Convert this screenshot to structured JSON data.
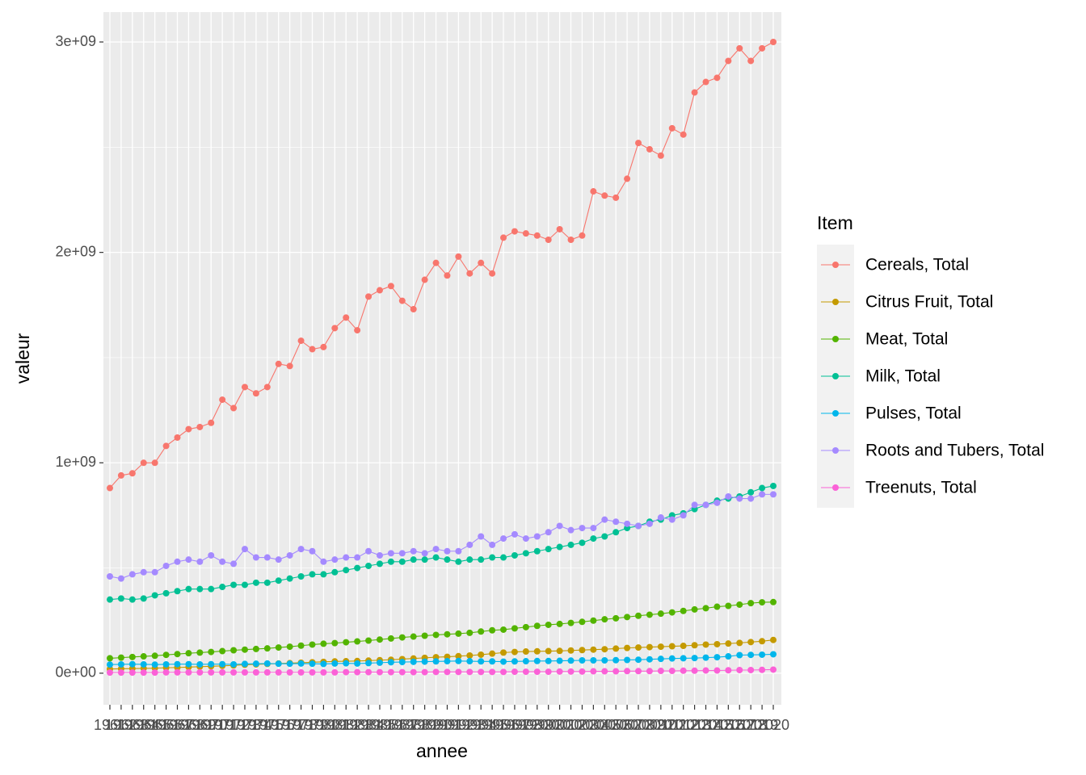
{
  "chart_data": {
    "type": "line",
    "x_label": "annee",
    "y_label": "valeur",
    "legend_title": "Item",
    "categories": [
      "1961",
      "1962",
      "1963",
      "1964",
      "1965",
      "1966",
      "1967",
      "1968",
      "1969",
      "1970",
      "1971",
      "1972",
      "1973",
      "1974",
      "1975",
      "1976",
      "1977",
      "1978",
      "1979",
      "1980",
      "1981",
      "1982",
      "1983",
      "1984",
      "1985",
      "1986",
      "1987",
      "1988",
      "1989",
      "1990",
      "1991",
      "1992",
      "1993",
      "1994",
      "1995",
      "1996",
      "1997",
      "1998",
      "1999",
      "2000",
      "2001",
      "2002",
      "2003",
      "2004",
      "2005",
      "2006",
      "2007",
      "2008",
      "2009",
      "2010",
      "2011",
      "2012",
      "2013",
      "2014",
      "2015",
      "2016",
      "2017",
      "2018",
      "2019",
      "2020"
    ],
    "ylim": [
      -150000000,
      3142000000
    ],
    "yticks": [
      {
        "value": 0,
        "label": "0e+00"
      },
      {
        "value": 1000000000,
        "label": "1e+09"
      },
      {
        "value": 2000000000,
        "label": "2e+09"
      },
      {
        "value": 3000000000,
        "label": "3e+09"
      }
    ],
    "grid": true,
    "legend": "right",
    "series": [
      {
        "name": "Cereals, Total",
        "color": "#F8766D",
        "values": [
          880000000.0,
          940000000.0,
          950000000.0,
          1000000000.0,
          1000000000.0,
          1080000000.0,
          1120000000.0,
          1160000000.0,
          1170000000.0,
          1190000000.0,
          1300000000.0,
          1260000000.0,
          1360000000.0,
          1330000000.0,
          1360000000.0,
          1470000000.0,
          1460000000.0,
          1580000000.0,
          1540000000.0,
          1550000000.0,
          1640000000.0,
          1690000000.0,
          1630000000.0,
          1790000000.0,
          1820000000.0,
          1840000000.0,
          1770000000.0,
          1730000000.0,
          1870000000.0,
          1950000000.0,
          1890000000.0,
          1980000000.0,
          1900000000.0,
          1950000000.0,
          1900000000.0,
          2070000000.0,
          2100000000.0,
          2090000000.0,
          2080000000.0,
          2060000000.0,
          2110000000.0,
          2060000000.0,
          2080000000.0,
          2290000000.0,
          2270000000.0,
          2260000000.0,
          2350000000.0,
          2520000000.0,
          2490000000.0,
          2460000000.0,
          2590000000.0,
          2560000000.0,
          2760000000.0,
          2810000000.0,
          2830000000.0,
          2910000000.0,
          2970000000.0,
          2910000000.0,
          2970000000.0,
          3000000000.0
        ]
      },
      {
        "name": "Citrus Fruit, Total",
        "color": "#C49A00",
        "values": [
          20000000.0,
          21000000.0,
          22000000.0,
          23000000.0,
          24000000.0,
          26000000.0,
          27000000.0,
          29000000.0,
          31000000.0,
          33000000.0,
          35000000.0,
          37000000.0,
          40000000.0,
          42000000.0,
          44000000.0,
          46000000.0,
          48000000.0,
          50000000.0,
          52000000.0,
          54000000.0,
          56000000.0,
          57000000.0,
          58000000.0,
          60000000.0,
          62000000.0,
          64000000.0,
          67000000.0,
          70000000.0,
          73000000.0,
          76000000.0,
          78000000.0,
          81000000.0,
          84000000.0,
          88000000.0,
          93000000.0,
          98000000.0,
          101000000.0,
          103000000.0,
          104000000.0,
          105000000.0,
          106000000.0,
          108000000.0,
          110000000.0,
          112000000.0,
          114000000.0,
          117000000.0,
          120000000.0,
          122000000.0,
          124000000.0,
          126000000.0,
          128000000.0,
          130000000.0,
          133000000.0,
          136000000.0,
          138000000.0,
          141000000.0,
          144000000.0,
          148000000.0,
          152000000.0,
          158000000.0
        ]
      },
      {
        "name": "Meat, Total",
        "color": "#53B400",
        "values": [
          71000000.0,
          74000000.0,
          77000000.0,
          80000000.0,
          83000000.0,
          87000000.0,
          91000000.0,
          95000000.0,
          98000000.0,
          101000000.0,
          105000000.0,
          109000000.0,
          112000000.0,
          115000000.0,
          118000000.0,
          122000000.0,
          126000000.0,
          131000000.0,
          136000000.0,
          140000000.0,
          143000000.0,
          147000000.0,
          151000000.0,
          155000000.0,
          160000000.0,
          165000000.0,
          170000000.0,
          174000000.0,
          178000000.0,
          182000000.0,
          185000000.0,
          188000000.0,
          192000000.0,
          198000000.0,
          204000000.0,
          207000000.0,
          213000000.0,
          219000000.0,
          225000000.0,
          230000000.0,
          234000000.0,
          239000000.0,
          244000000.0,
          250000000.0,
          256000000.0,
          261000000.0,
          267000000.0,
          273000000.0,
          278000000.0,
          283000000.0,
          289000000.0,
          296000000.0,
          303000000.0,
          309000000.0,
          316000000.0,
          320000000.0,
          326000000.0,
          333000000.0,
          337000000.0,
          338000000.0
        ]
      },
      {
        "name": "Milk, Total",
        "color": "#00C094",
        "values": [
          350000000.0,
          355000000.0,
          350000000.0,
          355000000.0,
          370000000.0,
          380000000.0,
          390000000.0,
          400000000.0,
          400000000.0,
          400000000.0,
          410000000.0,
          420000000.0,
          420000000.0,
          430000000.0,
          430000000.0,
          440000000.0,
          450000000.0,
          460000000.0,
          470000000.0,
          470000000.0,
          480000000.0,
          490000000.0,
          500000000.0,
          510000000.0,
          520000000.0,
          530000000.0,
          530000000.0,
          540000000.0,
          540000000.0,
          550000000.0,
          540000000.0,
          530000000.0,
          540000000.0,
          540000000.0,
          550000000.0,
          550000000.0,
          560000000.0,
          570000000.0,
          580000000.0,
          590000000.0,
          600000000.0,
          610000000.0,
          620000000.0,
          640000000.0,
          650000000.0,
          670000000.0,
          690000000.0,
          700000000.0,
          720000000.0,
          730000000.0,
          750000000.0,
          760000000.0,
          780000000.0,
          800000000.0,
          820000000.0,
          830000000.0,
          840000000.0,
          860000000.0,
          880000000.0,
          890000000.0
        ]
      },
      {
        "name": "Pulses, Total",
        "color": "#00B6EB",
        "values": [
          41000000.0,
          42000000.0,
          43000000.0,
          42000000.0,
          41000000.0,
          42000000.0,
          43000000.0,
          43000000.0,
          42000000.0,
          43000000.0,
          43000000.0,
          42000000.0,
          44000000.0,
          45000000.0,
          46000000.0,
          45000000.0,
          45000000.0,
          46000000.0,
          45000000.0,
          44000000.0,
          46000000.0,
          47000000.0,
          46000000.0,
          48000000.0,
          50000000.0,
          52000000.0,
          53000000.0,
          54000000.0,
          55000000.0,
          56000000.0,
          57000000.0,
          58000000.0,
          57000000.0,
          56000000.0,
          56000000.0,
          55000000.0,
          56000000.0,
          57000000.0,
          58000000.0,
          58000000.0,
          59000000.0,
          60000000.0,
          61000000.0,
          61000000.0,
          61000000.0,
          62000000.0,
          63000000.0,
          64000000.0,
          66000000.0,
          68000000.0,
          70000000.0,
          71000000.0,
          72000000.0,
          74000000.0,
          76000000.0,
          80000000.0,
          86000000.0,
          87000000.0,
          88000000.0,
          90000000.0
        ]
      },
      {
        "name": "Roots and Tubers, Total",
        "color": "#A58AFF",
        "values": [
          460000000.0,
          450000000.0,
          470000000.0,
          480000000.0,
          480000000.0,
          510000000.0,
          530000000.0,
          540000000.0,
          530000000.0,
          560000000.0,
          530000000.0,
          520000000.0,
          590000000.0,
          550000000.0,
          550000000.0,
          540000000.0,
          560000000.0,
          590000000.0,
          580000000.0,
          530000000.0,
          540000000.0,
          550000000.0,
          550000000.0,
          580000000.0,
          560000000.0,
          570000000.0,
          570000000.0,
          580000000.0,
          570000000.0,
          590000000.0,
          580000000.0,
          580000000.0,
          610000000.0,
          650000000.0,
          610000000.0,
          640000000.0,
          660000000.0,
          640000000.0,
          650000000.0,
          670000000.0,
          700000000.0,
          680000000.0,
          690000000.0,
          690000000.0,
          730000000.0,
          720000000.0,
          710000000.0,
          700000000.0,
          710000000.0,
          740000000.0,
          730000000.0,
          750000000.0,
          800000000.0,
          800000000.0,
          810000000.0,
          840000000.0,
          830000000.0,
          830000000.0,
          850000000.0,
          850000000.0
        ]
      },
      {
        "name": "Treenuts, Total",
        "color": "#FB61D7",
        "values": [
          3000000.0,
          3000000.0,
          3000000.0,
          3000000.0,
          3000000.0,
          4000000.0,
          4000000.0,
          4000000.0,
          4000000.0,
          4000000.0,
          4000000.0,
          4000000.0,
          4000000.0,
          4000000.0,
          4000000.0,
          4000000.0,
          4000000.0,
          4000000.0,
          4000000.0,
          4000000.0,
          4000000.0,
          5000000.0,
          5000000.0,
          5000000.0,
          5000000.0,
          5000000.0,
          5000000.0,
          5000000.0,
          5000000.0,
          6000000.0,
          6000000.0,
          6000000.0,
          6000000.0,
          6000000.0,
          6000000.0,
          6000000.0,
          7000000.0,
          7000000.0,
          7000000.0,
          7000000.0,
          8000000.0,
          8000000.0,
          8000000.0,
          9000000.0,
          9000000.0,
          9000000.0,
          10000000.0,
          10000000.0,
          10000000.0,
          11000000.0,
          11000000.0,
          12000000.0,
          12000000.0,
          13000000.0,
          13000000.0,
          14000000.0,
          15000000.0,
          15000000.0,
          16000000.0,
          17000000.0
        ]
      }
    ]
  }
}
